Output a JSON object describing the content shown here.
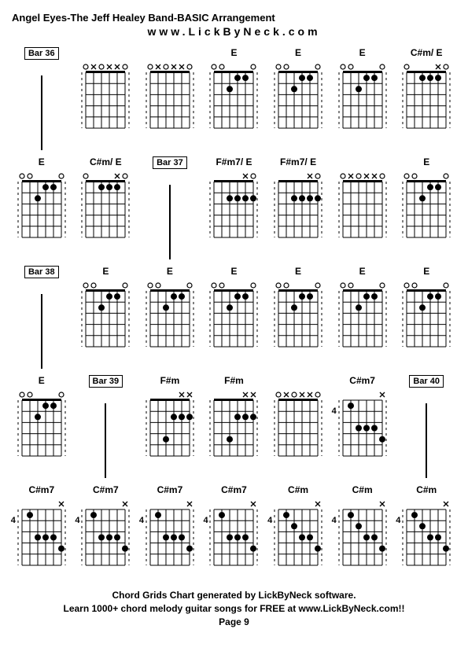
{
  "title": "Angel Eyes-The Jeff Healey Band-BASIC Arrangement",
  "subtitle": "www.LickByNeck.com",
  "footer_line1": "Chord Grids Chart generated by LickByNeck software.",
  "footer_line2": "Learn 1000+ chord melody guitar songs for FREE at www.LickByNeck.com!!",
  "page": "Page 9",
  "diagram": {
    "width": 62,
    "height": 95,
    "strings": 6,
    "frets": 5,
    "line_color": "#000",
    "dot_color": "#000",
    "dot_radius": 4,
    "mark_size": 5
  },
  "cells": [
    {
      "type": "bar",
      "label": "Bar 36"
    },
    {
      "type": "chord",
      "label": "",
      "dashed": true,
      "marks": [
        "o",
        "x",
        "x",
        "o",
        "x",
        "o"
      ],
      "dots": []
    },
    {
      "type": "chord",
      "label": "",
      "dashed": true,
      "marks": [
        "o",
        "x",
        "x",
        "o",
        "x",
        "o"
      ],
      "dots": []
    },
    {
      "type": "chord",
      "label": "E",
      "dashed": true,
      "marks": [
        "o",
        "",
        "",
        "",
        "o",
        "o"
      ],
      "dots": [
        [
          1,
          2
        ],
        [
          1,
          3
        ],
        [
          2,
          4
        ]
      ]
    },
    {
      "type": "chord",
      "label": "E",
      "dashed": true,
      "marks": [
        "o",
        "",
        "",
        "",
        "o",
        "o"
      ],
      "dots": [
        [
          1,
          2
        ],
        [
          1,
          3
        ],
        [
          2,
          4
        ]
      ]
    },
    {
      "type": "chord",
      "label": "E",
      "dashed": true,
      "marks": [
        "o",
        "",
        "",
        "",
        "o",
        "o"
      ],
      "dots": [
        [
          1,
          2
        ],
        [
          1,
          3
        ],
        [
          2,
          4
        ]
      ]
    },
    {
      "type": "chord",
      "label": "C#m/ E",
      "dashed": true,
      "marks": [
        "o",
        "x",
        "",
        "",
        "",
        "o"
      ],
      "dots": [
        [
          1,
          2
        ],
        [
          1,
          3
        ],
        [
          1,
          4
        ]
      ]
    },
    {
      "type": "chord",
      "label": "E",
      "dashed": true,
      "marks": [
        "o",
        "",
        "",
        "",
        "o",
        "o"
      ],
      "dots": [
        [
          1,
          2
        ],
        [
          1,
          3
        ],
        [
          2,
          4
        ]
      ]
    },
    {
      "type": "chord",
      "label": "C#m/ E",
      "dashed": true,
      "marks": [
        "o",
        "x",
        "",
        "",
        "",
        "o"
      ],
      "dots": [
        [
          1,
          2
        ],
        [
          1,
          3
        ],
        [
          1,
          4
        ]
      ]
    },
    {
      "type": "bar",
      "label": "Bar 37"
    },
    {
      "type": "chord",
      "label": "F#m7/ E",
      "dashed": true,
      "marks": [
        "o",
        "x",
        "",
        "",
        "",
        ""
      ],
      "dots": [
        [
          2,
          1
        ],
        [
          2,
          2
        ],
        [
          2,
          3
        ],
        [
          2,
          4
        ]
      ]
    },
    {
      "type": "chord",
      "label": "F#m7/ E",
      "dashed": true,
      "marks": [
        "o",
        "x",
        "",
        "",
        "",
        ""
      ],
      "dots": [
        [
          2,
          1
        ],
        [
          2,
          2
        ],
        [
          2,
          3
        ],
        [
          2,
          4
        ]
      ]
    },
    {
      "type": "chord",
      "label": "",
      "dashed": true,
      "marks": [
        "o",
        "x",
        "x",
        "o",
        "x",
        "o"
      ],
      "dots": []
    },
    {
      "type": "chord",
      "label": "E",
      "dashed": true,
      "marks": [
        "o",
        "",
        "",
        "",
        "o",
        "o"
      ],
      "dots": [
        [
          1,
          2
        ],
        [
          1,
          3
        ],
        [
          2,
          4
        ]
      ]
    },
    {
      "type": "bar",
      "label": "Bar 38"
    },
    {
      "type": "chord",
      "label": "E",
      "dashed": true,
      "marks": [
        "o",
        "",
        "",
        "",
        "o",
        "o"
      ],
      "dots": [
        [
          1,
          2
        ],
        [
          1,
          3
        ],
        [
          2,
          4
        ]
      ]
    },
    {
      "type": "chord",
      "label": "E",
      "dashed": true,
      "marks": [
        "o",
        "",
        "",
        "",
        "o",
        "o"
      ],
      "dots": [
        [
          1,
          2
        ],
        [
          1,
          3
        ],
        [
          2,
          4
        ]
      ]
    },
    {
      "type": "chord",
      "label": "E",
      "dashed": true,
      "marks": [
        "o",
        "",
        "",
        "",
        "o",
        "o"
      ],
      "dots": [
        [
          1,
          2
        ],
        [
          1,
          3
        ],
        [
          2,
          4
        ]
      ]
    },
    {
      "type": "chord",
      "label": "E",
      "dashed": true,
      "marks": [
        "o",
        "",
        "",
        "",
        "o",
        "o"
      ],
      "dots": [
        [
          1,
          2
        ],
        [
          1,
          3
        ],
        [
          2,
          4
        ]
      ]
    },
    {
      "type": "chord",
      "label": "E",
      "dashed": true,
      "marks": [
        "o",
        "",
        "",
        "",
        "o",
        "o"
      ],
      "dots": [
        [
          1,
          2
        ],
        [
          1,
          3
        ],
        [
          2,
          4
        ]
      ]
    },
    {
      "type": "chord",
      "label": "E",
      "dashed": true,
      "marks": [
        "o",
        "",
        "",
        "",
        "o",
        "o"
      ],
      "dots": [
        [
          1,
          2
        ],
        [
          1,
          3
        ],
        [
          2,
          4
        ]
      ]
    },
    {
      "type": "chord",
      "label": "E",
      "dashed": true,
      "marks": [
        "o",
        "",
        "",
        "",
        "o",
        "o"
      ],
      "dots": [
        [
          1,
          2
        ],
        [
          1,
          3
        ],
        [
          2,
          4
        ]
      ]
    },
    {
      "type": "bar",
      "label": "Bar 39"
    },
    {
      "type": "chord",
      "label": "F#m",
      "dashed": true,
      "marks": [
        "x",
        "x",
        "",
        "",
        "",
        ""
      ],
      "dots": [
        [
          2,
          1
        ],
        [
          2,
          2
        ],
        [
          2,
          3
        ],
        [
          4,
          4
        ]
      ]
    },
    {
      "type": "chord",
      "label": "F#m",
      "dashed": true,
      "marks": [
        "x",
        "x",
        "",
        "",
        "",
        ""
      ],
      "dots": [
        [
          2,
          1
        ],
        [
          2,
          2
        ],
        [
          2,
          3
        ],
        [
          4,
          4
        ]
      ]
    },
    {
      "type": "chord",
      "label": "",
      "dashed": true,
      "marks": [
        "o",
        "x",
        "x",
        "o",
        "x",
        "o"
      ],
      "dots": []
    },
    {
      "type": "chord",
      "label": "C#m7",
      "dashed": true,
      "fret": 4,
      "marks": [
        "x",
        "",
        "",
        "",
        "",
        ""
      ],
      "dots": [
        [
          1,
          5
        ],
        [
          3,
          2
        ],
        [
          3,
          3
        ],
        [
          3,
          4
        ],
        [
          4,
          1
        ]
      ]
    },
    {
      "type": "bar",
      "label": "Bar 40"
    },
    {
      "type": "chord",
      "label": "C#m7",
      "dashed": true,
      "fret": 4,
      "marks": [
        "x",
        "",
        "",
        "",
        "",
        ""
      ],
      "dots": [
        [
          1,
          5
        ],
        [
          3,
          2
        ],
        [
          3,
          3
        ],
        [
          3,
          4
        ],
        [
          4,
          1
        ]
      ]
    },
    {
      "type": "chord",
      "label": "C#m7",
      "dashed": true,
      "fret": 4,
      "marks": [
        "x",
        "",
        "",
        "",
        "",
        ""
      ],
      "dots": [
        [
          1,
          5
        ],
        [
          3,
          2
        ],
        [
          3,
          3
        ],
        [
          3,
          4
        ],
        [
          4,
          1
        ]
      ]
    },
    {
      "type": "chord",
      "label": "C#m7",
      "dashed": true,
      "fret": 4,
      "marks": [
        "x",
        "",
        "",
        "",
        "",
        ""
      ],
      "dots": [
        [
          1,
          5
        ],
        [
          3,
          2
        ],
        [
          3,
          3
        ],
        [
          3,
          4
        ],
        [
          4,
          1
        ]
      ]
    },
    {
      "type": "chord",
      "label": "C#m7",
      "dashed": true,
      "fret": 4,
      "marks": [
        "x",
        "",
        "",
        "",
        "",
        ""
      ],
      "dots": [
        [
          1,
          5
        ],
        [
          3,
          2
        ],
        [
          3,
          3
        ],
        [
          3,
          4
        ],
        [
          4,
          1
        ]
      ]
    },
    {
      "type": "chord",
      "label": "C#m",
      "dashed": true,
      "fret": 4,
      "marks": [
        "x",
        "",
        "",
        "",
        "",
        ""
      ],
      "dots": [
        [
          1,
          5
        ],
        [
          2,
          4
        ],
        [
          3,
          2
        ],
        [
          3,
          3
        ],
        [
          4,
          1
        ]
      ]
    },
    {
      "type": "chord",
      "label": "C#m",
      "dashed": true,
      "fret": 4,
      "marks": [
        "x",
        "",
        "",
        "",
        "",
        ""
      ],
      "dots": [
        [
          1,
          5
        ],
        [
          2,
          4
        ],
        [
          3,
          2
        ],
        [
          3,
          3
        ],
        [
          4,
          1
        ]
      ]
    },
    {
      "type": "chord",
      "label": "C#m",
      "dashed": true,
      "fret": 4,
      "marks": [
        "x",
        "",
        "",
        "",
        "",
        ""
      ],
      "dots": [
        [
          1,
          5
        ],
        [
          2,
          4
        ],
        [
          3,
          2
        ],
        [
          3,
          3
        ],
        [
          4,
          1
        ]
      ]
    }
  ]
}
